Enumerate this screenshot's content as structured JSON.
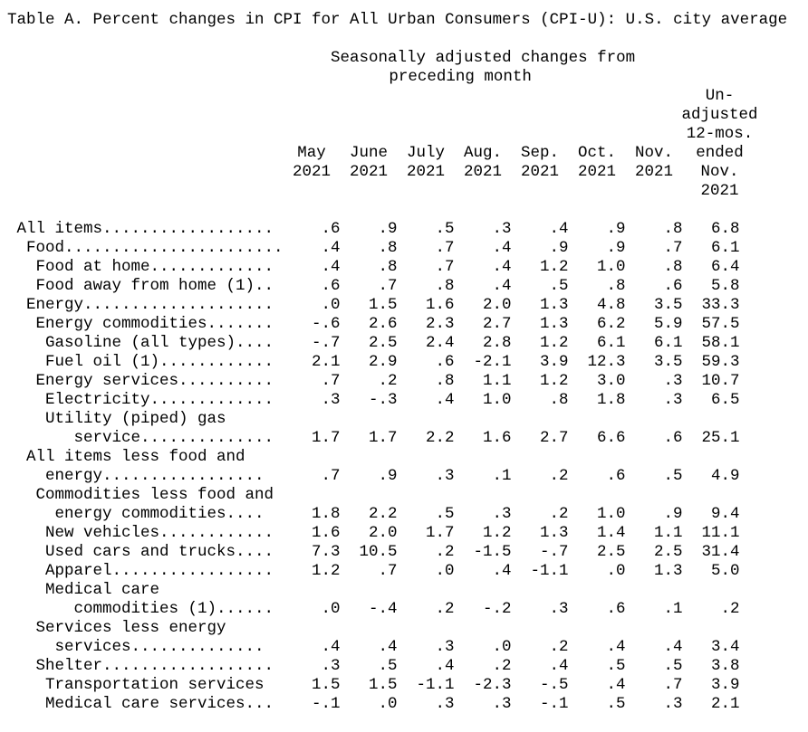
{
  "title": "Table A. Percent changes in CPI for All Urban Consumers (CPI-U): U.S. city average",
  "header": {
    "group_line1": "Seasonally adjusted changes from",
    "group_line2": "preceding month",
    "months": [
      "May",
      "June",
      "July",
      "Aug.",
      "Sep.",
      "Oct.",
      "Nov."
    ],
    "years": [
      "2021",
      "2021",
      "2021",
      "2021",
      "2021",
      "2021",
      "2021"
    ],
    "last_column_lines": [
      "Un-",
      "adjusted",
      "12-mos.",
      "ended",
      "Nov.",
      "2021"
    ]
  },
  "column_keys": [
    "may-2021",
    "june-2021",
    "july-2021",
    "aug-2021",
    "sep-2021",
    "oct-2021",
    "nov-2021",
    "12mo-ended-nov-2021"
  ],
  "table": {
    "rows": [
      {
        "id": "all-items",
        "label_lines": [
          " All items.................."
        ],
        "values": [
          ".6",
          ".9",
          ".5",
          ".3",
          ".4",
          ".9",
          ".8"
        ],
        "yoy": "6.8"
      },
      {
        "id": "food",
        "label_lines": [
          "  Food......................."
        ],
        "values": [
          ".4",
          ".8",
          ".7",
          ".4",
          ".9",
          ".9",
          ".7"
        ],
        "yoy": "6.1"
      },
      {
        "id": "food-at-home",
        "label_lines": [
          "   Food at home............."
        ],
        "values": [
          ".4",
          ".8",
          ".7",
          ".4",
          "1.2",
          "1.0",
          ".8"
        ],
        "yoy": "6.4"
      },
      {
        "id": "food-away-from-home",
        "label_lines": [
          "   Food away from home (1).."
        ],
        "values": [
          ".6",
          ".7",
          ".8",
          ".4",
          ".5",
          ".8",
          ".6"
        ],
        "yoy": "5.8"
      },
      {
        "id": "energy",
        "label_lines": [
          "  Energy...................."
        ],
        "values": [
          ".0",
          "1.5",
          "1.6",
          "2.0",
          "1.3",
          "4.8",
          "3.5"
        ],
        "yoy": "33.3"
      },
      {
        "id": "energy-commodities",
        "label_lines": [
          "   Energy commodities......."
        ],
        "values": [
          "-.6",
          "2.6",
          "2.3",
          "2.7",
          "1.3",
          "6.2",
          "5.9"
        ],
        "yoy": "57.5"
      },
      {
        "id": "gasoline-all-types",
        "label_lines": [
          "    Gasoline (all types)...."
        ],
        "values": [
          "-.7",
          "2.5",
          "2.4",
          "2.8",
          "1.2",
          "6.1",
          "6.1"
        ],
        "yoy": "58.1"
      },
      {
        "id": "fuel-oil",
        "label_lines": [
          "    Fuel oil (1)............"
        ],
        "values": [
          "2.1",
          "2.9",
          ".6",
          "-2.1",
          "3.9",
          "12.3",
          "3.5"
        ],
        "yoy": "59.3"
      },
      {
        "id": "energy-services",
        "label_lines": [
          "   Energy services.........."
        ],
        "values": [
          ".7",
          ".2",
          ".8",
          "1.1",
          "1.2",
          "3.0",
          ".3"
        ],
        "yoy": "10.7"
      },
      {
        "id": "electricity",
        "label_lines": [
          "    Electricity............."
        ],
        "values": [
          ".3",
          "-.3",
          ".4",
          "1.0",
          ".8",
          "1.8",
          ".3"
        ],
        "yoy": "6.5"
      },
      {
        "id": "utility-piped-gas-service",
        "label_lines": [
          "    Utility (piped) gas",
          "       service.............."
        ],
        "values": [
          "1.7",
          "1.7",
          "2.2",
          "1.6",
          "2.7",
          "6.6",
          ".6"
        ],
        "yoy": "25.1"
      },
      {
        "id": "all-items-less-food-and-energy",
        "label_lines": [
          "  All items less food and",
          "    energy................."
        ],
        "values": [
          ".7",
          ".9",
          ".3",
          ".1",
          ".2",
          ".6",
          ".5"
        ],
        "yoy": "4.9"
      },
      {
        "id": "commodities-less-food-energy",
        "label_lines": [
          "   Commodities less food and",
          "     energy commodities...."
        ],
        "values": [
          "1.8",
          "2.2",
          ".5",
          ".3",
          ".2",
          "1.0",
          ".9"
        ],
        "yoy": "9.4"
      },
      {
        "id": "new-vehicles",
        "label_lines": [
          "    New vehicles............"
        ],
        "values": [
          "1.6",
          "2.0",
          "1.7",
          "1.2",
          "1.3",
          "1.4",
          "1.1"
        ],
        "yoy": "11.1"
      },
      {
        "id": "used-cars-and-trucks",
        "label_lines": [
          "    Used cars and trucks...."
        ],
        "values": [
          "7.3",
          "10.5",
          ".2",
          "-1.5",
          "-.7",
          "2.5",
          "2.5"
        ],
        "yoy": "31.4"
      },
      {
        "id": "apparel",
        "label_lines": [
          "    Apparel................."
        ],
        "values": [
          "1.2",
          ".7",
          ".0",
          ".4",
          "-1.1",
          ".0",
          "1.3"
        ],
        "yoy": "5.0"
      },
      {
        "id": "medical-care-commodities",
        "label_lines": [
          "    Medical care",
          "       commodities (1)......"
        ],
        "values": [
          ".0",
          "-.4",
          ".2",
          "-.2",
          ".3",
          ".6",
          ".1"
        ],
        "yoy": ".2"
      },
      {
        "id": "services-less-energy-services",
        "label_lines": [
          "   Services less energy",
          "     services.............."
        ],
        "values": [
          ".4",
          ".4",
          ".3",
          ".0",
          ".2",
          ".4",
          ".4"
        ],
        "yoy": "3.4"
      },
      {
        "id": "shelter",
        "label_lines": [
          "   Shelter.................."
        ],
        "values": [
          ".3",
          ".5",
          ".4",
          ".2",
          ".4",
          ".5",
          ".5"
        ],
        "yoy": "3.8"
      },
      {
        "id": "transportation-services",
        "label_lines": [
          "    Transportation services"
        ],
        "values": [
          "1.5",
          "1.5",
          "-1.1",
          "-2.3",
          "-.5",
          ".4",
          ".7"
        ],
        "yoy": "3.9"
      },
      {
        "id": "medical-care-services",
        "label_lines": [
          "    Medical care services..."
        ],
        "values": [
          "-.1",
          ".0",
          ".3",
          ".3",
          "-.1",
          ".5",
          ".3"
        ],
        "yoy": "2.1"
      }
    ]
  },
  "colors": {
    "text": "#000000",
    "background": "#ffffff"
  }
}
